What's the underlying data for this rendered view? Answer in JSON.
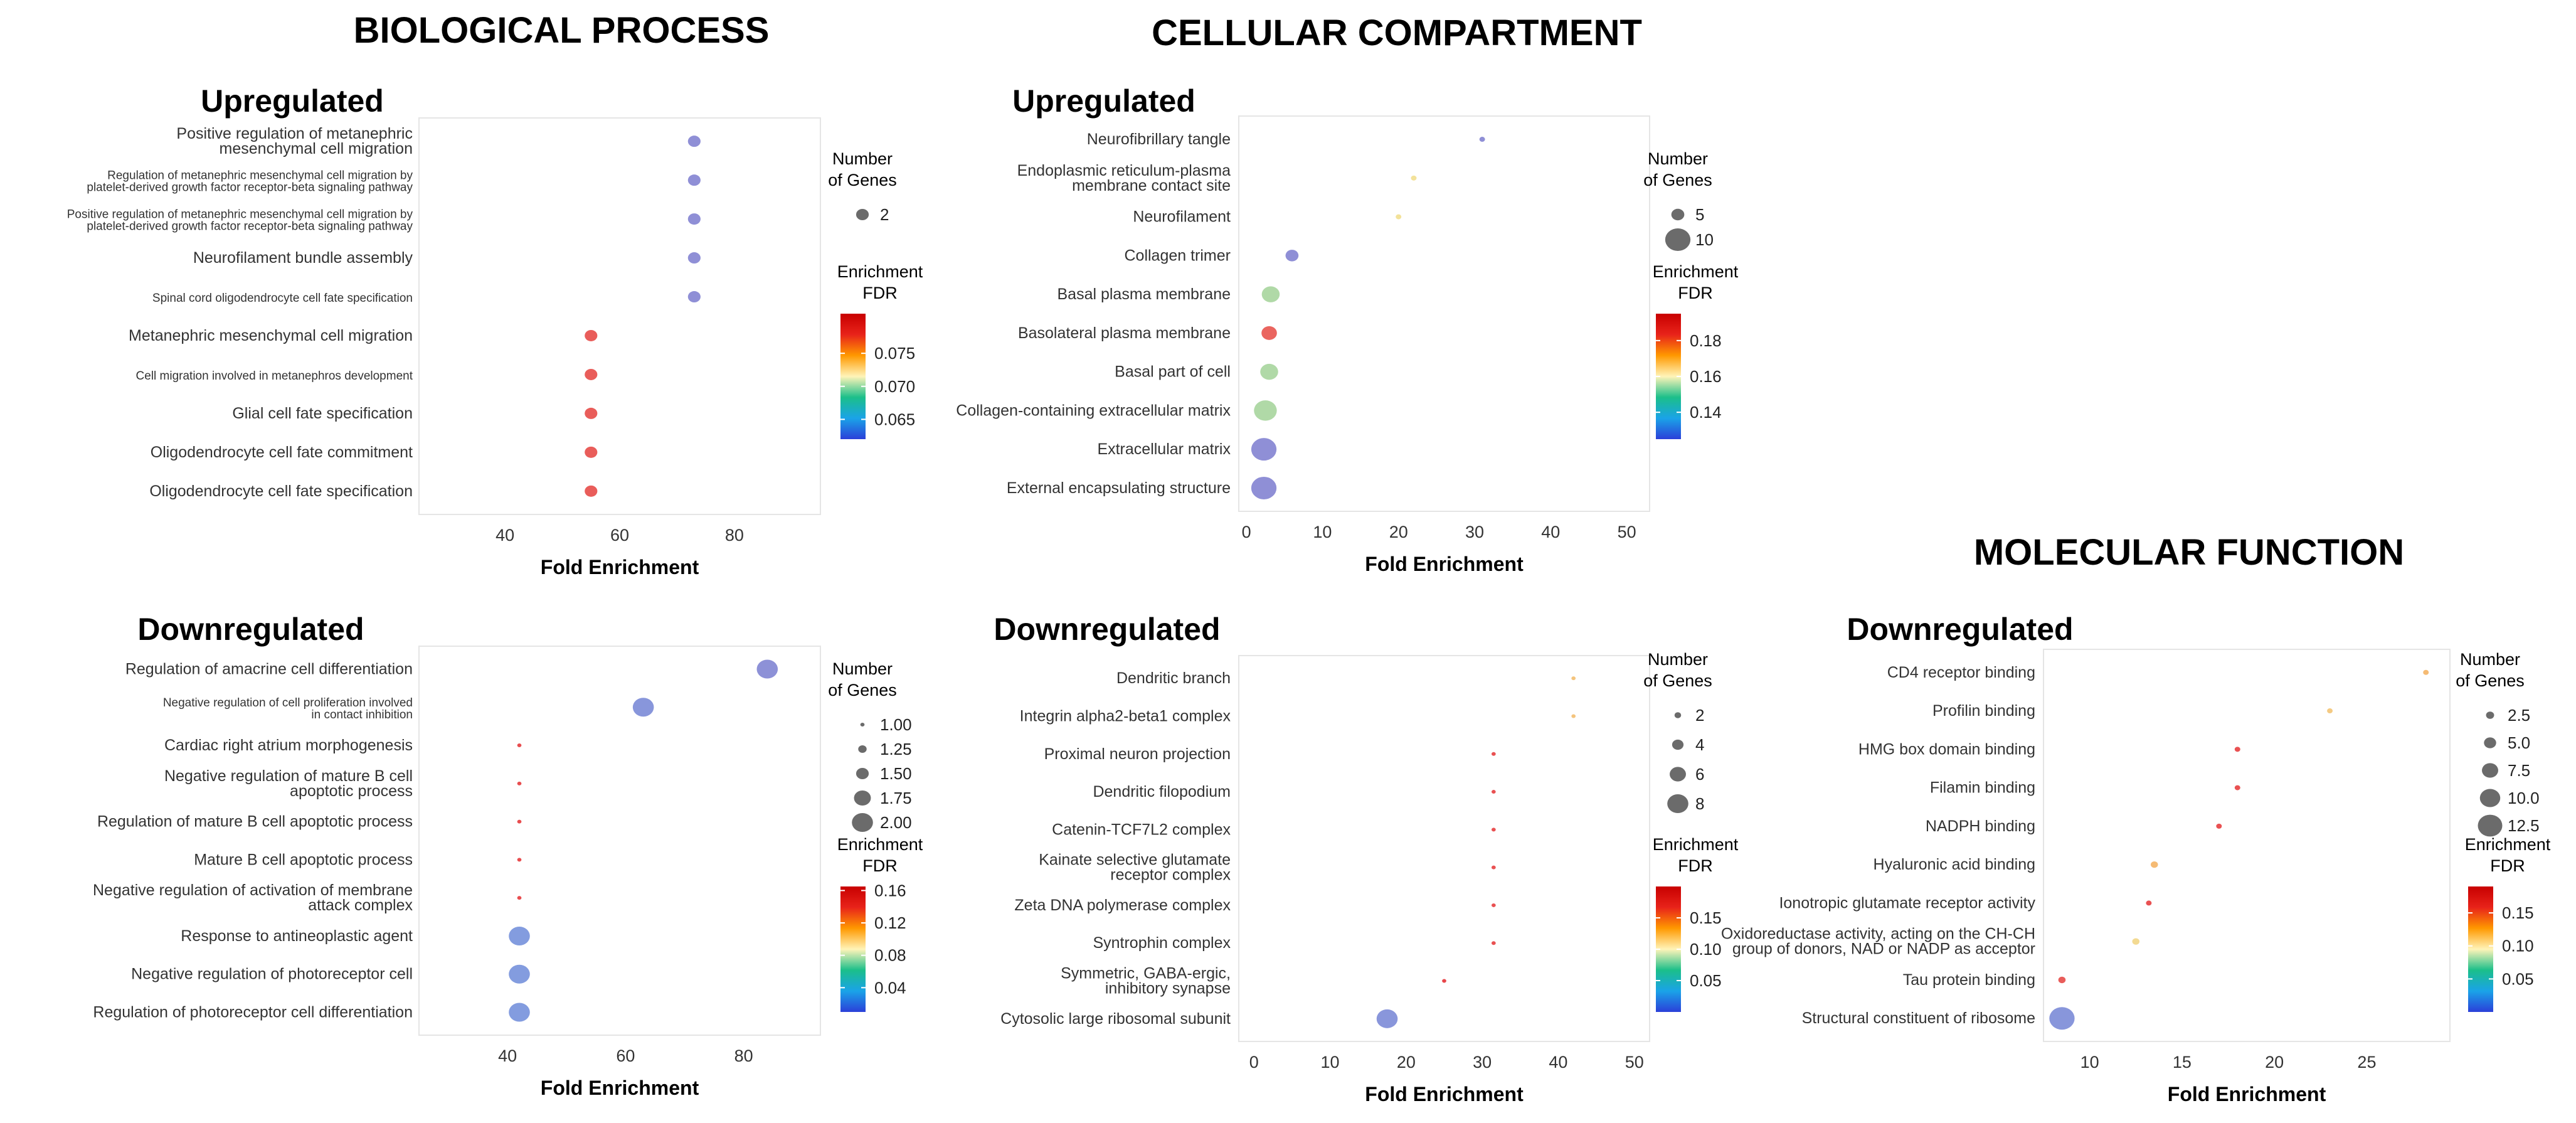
{
  "sections": {
    "bp": "BIOLOGICAL PROCESS",
    "cc": "CELLULAR COMPARTMENT",
    "mf": "MOLECULAR FUNCTION"
  },
  "legend": {
    "size_title": [
      "Number",
      "of Genes"
    ],
    "color_title": [
      "Enrichment",
      "FDR"
    ],
    "colors": [
      "#2b3fd9",
      "#1aa3e8",
      "#1bbf8a",
      "#fff4b8",
      "#ff9900",
      "#e8231a",
      "#c80000"
    ]
  },
  "chart_data": [
    {
      "id": "bp-up",
      "type": "scatter",
      "title": "Upregulated",
      "xlabel": "Fold Enrichment",
      "xlim": [
        25,
        95
      ],
      "xticks": [
        40,
        60,
        80
      ],
      "categories": [
        "Positive regulation of metanephric\nmesenchymal cell migration",
        "Regulation of metanephric mesenchymal cell migration by\nplatelet-derived growth factor receptor-beta signaling pathway",
        "Positive regulation of metanephric mesenchymal cell migration by\nplatelet-derived growth factor receptor-beta signaling pathway",
        "Neurofilament bundle assembly",
        "Spinal cord oligodendrocyte cell fate specification",
        "Metanephric mesenchymal cell migration",
        "Cell migration involved in metanephros development",
        "Glial cell fate specification",
        "Oligodendrocyte cell fate commitment",
        "Oligodendrocyte cell fate specification"
      ],
      "x": [
        73,
        73,
        73,
        73,
        73,
        55,
        55,
        55,
        55,
        55
      ],
      "genes": [
        2,
        2,
        2,
        2,
        2,
        2,
        2,
        2,
        2,
        2
      ],
      "fdr": [
        0.062,
        0.062,
        0.062,
        0.062,
        0.062,
        0.079,
        0.079,
        0.079,
        0.079,
        0.079
      ],
      "size_legend": [
        2
      ],
      "size_range": [
        2,
        2
      ],
      "fdr_range": [
        0.062,
        0.081
      ],
      "fdr_ticks": [
        0.065,
        0.07,
        0.075
      ]
    },
    {
      "id": "bp-down",
      "type": "scatter",
      "title": "Downregulated",
      "xlabel": "Fold Enrichment",
      "xlim": [
        25,
        93
      ],
      "xticks": [
        40,
        60,
        80
      ],
      "categories": [
        "Regulation of amacrine cell differentiation",
        "Negative regulation of cell proliferation involved\nin contact inhibition",
        "Cardiac right atrium morphogenesis",
        "Negative regulation of mature B cell\napoptotic process",
        "Regulation of mature B cell apoptotic process",
        "Mature B cell apoptotic process",
        "Negative regulation of activation of membrane\nattack complex",
        "Response to antineoplastic agent",
        "Negative regulation of photoreceptor cell",
        "Regulation of photoreceptor cell differentiation"
      ],
      "x": [
        84,
        63,
        42,
        42,
        42,
        42,
        42,
        42,
        42,
        42
      ],
      "genes": [
        2,
        2,
        1,
        1,
        1,
        1,
        1,
        2,
        2,
        2
      ],
      "fdr": [
        0.012,
        0.018,
        0.16,
        0.16,
        0.16,
        0.16,
        0.16,
        0.025,
        0.025,
        0.025
      ],
      "size_legend": [
        1.0,
        1.25,
        1.5,
        1.75,
        2.0
      ],
      "size_labels": [
        "1.00",
        "1.25",
        "1.50",
        "1.75",
        "2.00"
      ],
      "size_range": [
        1,
        2
      ],
      "fdr_range": [
        0.01,
        0.165
      ],
      "fdr_ticks": [
        0.04,
        0.08,
        0.12,
        0.16
      ]
    },
    {
      "id": "cc-up",
      "type": "scatter",
      "title": "Upregulated",
      "xlabel": "Fold Enrichment",
      "xlim": [
        -1,
        53
      ],
      "xticks": [
        0,
        10,
        20,
        30,
        40,
        50
      ],
      "categories": [
        "Neurofibrillary tangle",
        "Endoplasmic reticulum-plasma\nmembrane contact site",
        "Neurofilament",
        "Collagen trimer",
        "Basal plasma membrane",
        "Basolateral plasma membrane",
        "Basal part of cell",
        "Collagen-containing extracellular matrix",
        "Extracellular matrix",
        "External encapsulating structure"
      ],
      "x": [
        31,
        22,
        20,
        6,
        3.2,
        3,
        3,
        2.5,
        2.3,
        2.3
      ],
      "genes": [
        2,
        2,
        2,
        5,
        7,
        6,
        7,
        9,
        10,
        10
      ],
      "fdr": [
        0.125,
        0.16,
        0.16,
        0.125,
        0.155,
        0.185,
        0.155,
        0.155,
        0.125,
        0.125
      ],
      "size_legend": [
        5,
        10
      ],
      "size_range": [
        2,
        10
      ],
      "fdr_range": [
        0.125,
        0.195
      ],
      "fdr_ticks": [
        0.14,
        0.16,
        0.18
      ]
    },
    {
      "id": "cc-down",
      "type": "scatter",
      "title": "Downregulated",
      "xlabel": "Fold Enrichment",
      "xlim": [
        -2,
        52
      ],
      "xticks": [
        0,
        10,
        20,
        30,
        40,
        50
      ],
      "categories": [
        "Dendritic branch",
        "Integrin alpha2-beta1 complex",
        "Proximal neuron projection",
        "Dendritic filopodium",
        "Catenin-TCF7L2 complex",
        "Kainate selective glutamate\nreceptor complex",
        "Zeta DNA polymerase complex",
        "Syntrophin complex",
        "Symmetric, GABA-ergic,\ninhibitory synapse",
        "Cytosolic large ribosomal subunit"
      ],
      "x": [
        42,
        42,
        31.5,
        31.5,
        31.5,
        31.5,
        31.5,
        31.5,
        25,
        17.5
      ],
      "genes": [
        1,
        1,
        1,
        1,
        1,
        1,
        1,
        1,
        1,
        8
      ],
      "fdr": [
        0.12,
        0.12,
        0.19,
        0.19,
        0.19,
        0.19,
        0.19,
        0.19,
        0.2,
        0.01
      ],
      "size_legend": [
        2,
        4,
        6,
        8
      ],
      "size_range": [
        1,
        8
      ],
      "fdr_range": [
        0.0,
        0.2
      ],
      "fdr_ticks": [
        0.05,
        0.1,
        0.15
      ]
    },
    {
      "id": "mf-down",
      "type": "scatter",
      "title": "Downregulated",
      "xlabel": "Fold Enrichment",
      "xlim": [
        7.5,
        29.5
      ],
      "xticks": [
        10,
        15,
        20,
        25
      ],
      "categories": [
        "CD4 receptor binding",
        "Profilin binding",
        "HMG box domain binding",
        "Filamin binding",
        "NADPH binding",
        "Hyaluronic acid binding",
        "Ionotropic glutamate receptor activity",
        "Oxidoreductase activity, acting on the CH-CH\ngroup of donors, NAD or NADP as acceptor",
        "Tau protein binding",
        "Structural constituent of ribosome"
      ],
      "x": [
        28.2,
        23,
        18,
        18,
        17,
        13.5,
        13.2,
        12.5,
        8.5,
        8.5
      ],
      "genes": [
        1,
        1,
        1,
        1,
        1,
        2,
        1,
        2,
        2,
        13
      ],
      "fdr": [
        0.12,
        0.11,
        0.18,
        0.18,
        0.18,
        0.12,
        0.18,
        0.1,
        0.17,
        0.01
      ],
      "size_legend": [
        2.5,
        5.0,
        7.5,
        10.0,
        12.5
      ],
      "size_labels": [
        "2.5",
        "5.0",
        "7.5",
        "10.0",
        "12.5"
      ],
      "size_range": [
        1,
        13
      ],
      "fdr_range": [
        0.0,
        0.19
      ],
      "fdr_ticks": [
        0.05,
        0.1,
        0.15
      ]
    }
  ]
}
